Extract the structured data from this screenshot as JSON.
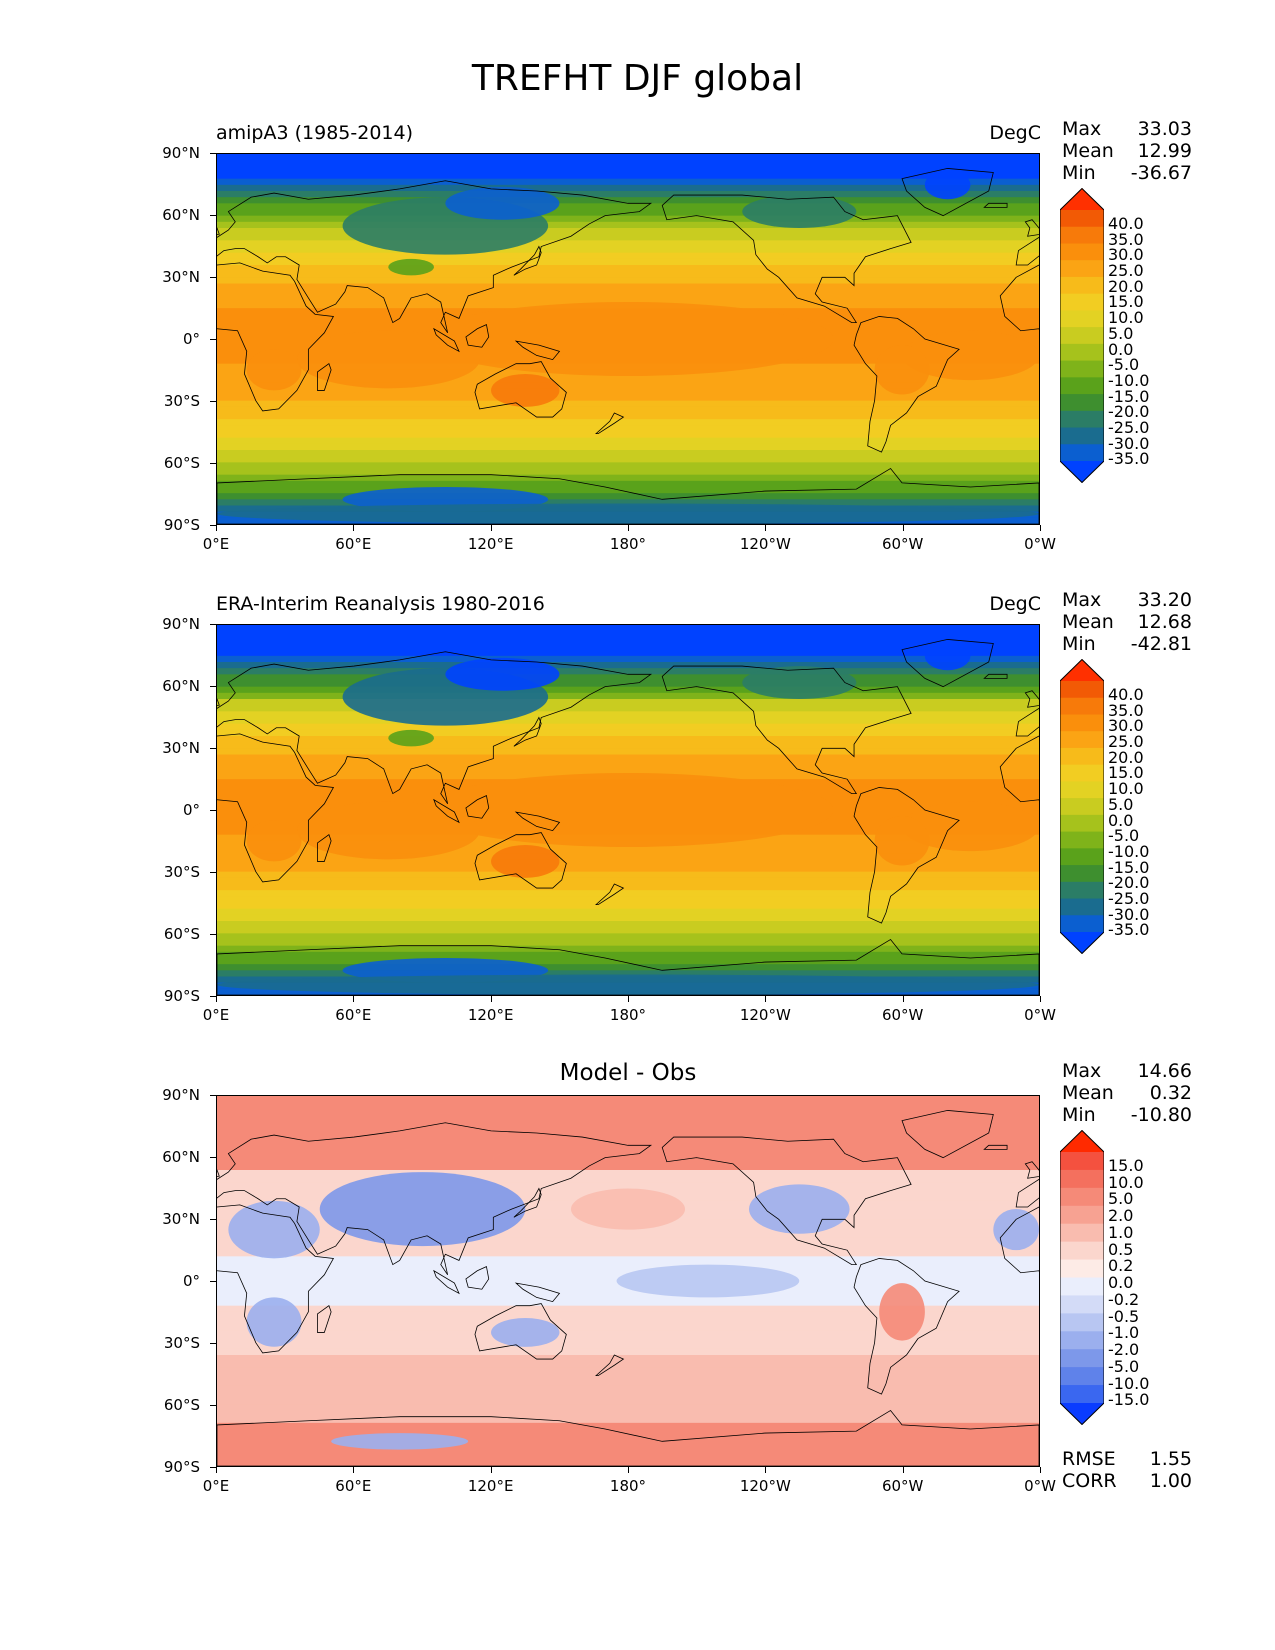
{
  "figure": {
    "title": "TREFHT DJF global"
  },
  "axes": {
    "lat_labels": [
      "90°N",
      "60°N",
      "30°N",
      "0°",
      "30°S",
      "60°S",
      "90°S"
    ],
    "lon_labels": [
      "0°E",
      "60°E",
      "120°E",
      "180°",
      "120°W",
      "60°W",
      "0°W"
    ]
  },
  "panels": [
    {
      "left_title": "amipA3 (1985-2014)",
      "right_title": "DegC",
      "center_title": "",
      "stats": [
        {
          "label": "Max",
          "value": "33.03"
        },
        {
          "label": "Mean",
          "value": "12.99"
        },
        {
          "label": "Min",
          "value": "-36.67"
        }
      ],
      "colorbar_labels": [
        "40.0",
        "35.0",
        "30.0",
        "25.0",
        "20.0",
        "15.0",
        "10.0",
        "5.0",
        "0.0",
        "-5.0",
        "-10.0",
        "-15.0",
        "-20.0",
        "-25.0",
        "-30.0",
        "-35.0"
      ],
      "colorbar_colors": [
        "#ff3000",
        "#f25a05",
        "#f77a0a",
        "#fa8f0c",
        "#fba414",
        "#f7bb1a",
        "#f2cd22",
        "#e3d223",
        "#c9cc20",
        "#a6c21c",
        "#7fb31a",
        "#5aa21b",
        "#3e8f2f",
        "#2b7d66",
        "#1a6c8f",
        "#0b5fd0",
        "#0042ff"
      ],
      "extremes": {
        "max": 33.03,
        "mean": 12.99,
        "min": -36.67
      }
    },
    {
      "left_title": "ERA-Interim Reanalysis 1980-2016",
      "right_title": "DegC",
      "center_title": "",
      "stats": [
        {
          "label": "Max",
          "value": "33.20"
        },
        {
          "label": "Mean",
          "value": "12.68"
        },
        {
          "label": "Min",
          "value": "-42.81"
        }
      ],
      "colorbar_labels": [
        "40.0",
        "35.0",
        "30.0",
        "25.0",
        "20.0",
        "15.0",
        "10.0",
        "5.0",
        "0.0",
        "-5.0",
        "-10.0",
        "-15.0",
        "-20.0",
        "-25.0",
        "-30.0",
        "-35.0"
      ],
      "colorbar_colors": [
        "#ff3000",
        "#f25a05",
        "#f77a0a",
        "#fa8f0c",
        "#fba414",
        "#f7bb1a",
        "#f2cd22",
        "#e3d223",
        "#c9cc20",
        "#a6c21c",
        "#7fb31a",
        "#5aa21b",
        "#3e8f2f",
        "#2b7d66",
        "#1a6c8f",
        "#0b5fd0",
        "#0042ff"
      ],
      "extremes": {
        "max": 33.2,
        "mean": 12.68,
        "min": -42.81
      }
    },
    {
      "left_title": "",
      "right_title": "",
      "center_title": "Model - Obs",
      "stats": [
        {
          "label": "Max",
          "value": "14.66"
        },
        {
          "label": "Mean",
          "value": "0.32"
        },
        {
          "label": "Min",
          "value": "-10.80"
        }
      ],
      "bottom_stats": [
        {
          "label": "RMSE",
          "value": "1.55"
        },
        {
          "label": "CORR",
          "value": "1.00"
        }
      ],
      "colorbar_labels": [
        "15.0",
        "10.0",
        "5.0",
        "2.0",
        "1.0",
        "0.5",
        "0.2",
        "0.0",
        "-0.2",
        "-0.5",
        "-1.0",
        "-2.0",
        "-5.0",
        "-10.0",
        "-15.0"
      ],
      "colorbar_colors": [
        "#ff2a00",
        "#f4513f",
        "#f4705e",
        "#f58a78",
        "#f7a292",
        "#f9bcaf",
        "#fbd6cd",
        "#fdebe6",
        "#eaeefc",
        "#d3dbf7",
        "#b8c6f2",
        "#9bafee",
        "#7d98ea",
        "#5f82ea",
        "#3a67f0",
        "#0a3cff"
      ],
      "extremes": {
        "max": 14.66,
        "mean": 0.32,
        "min": -10.8
      }
    }
  ],
  "chart_data": [
    {
      "type": "heatmap",
      "title": "TREFHT DJF global",
      "subtitle": "amipA3 (1985-2014)",
      "units": "DegC",
      "x_ticks": [
        "0°E",
        "60°E",
        "120°E",
        "180°",
        "120°W",
        "60°W",
        "0°W"
      ],
      "y_ticks": [
        "90°N",
        "60°N",
        "30°N",
        "0°",
        "30°S",
        "60°S",
        "90°S"
      ],
      "xlim": [
        0,
        360
      ],
      "ylim": [
        -90,
        90
      ],
      "levels": [
        -35,
        -30,
        -25,
        -20,
        -15,
        -10,
        -5,
        0,
        5,
        10,
        15,
        20,
        25,
        30,
        35,
        40
      ],
      "max": 33.03,
      "mean": 12.99,
      "min": -36.67
    },
    {
      "type": "heatmap",
      "subtitle": "ERA-Interim Reanalysis 1980-2016",
      "units": "DegC",
      "x_ticks": [
        "0°E",
        "60°E",
        "120°E",
        "180°",
        "120°W",
        "60°W",
        "0°W"
      ],
      "y_ticks": [
        "90°N",
        "60°N",
        "30°N",
        "0°",
        "30°S",
        "60°S",
        "90°S"
      ],
      "xlim": [
        0,
        360
      ],
      "ylim": [
        -90,
        90
      ],
      "levels": [
        -35,
        -30,
        -25,
        -20,
        -15,
        -10,
        -5,
        0,
        5,
        10,
        15,
        20,
        25,
        30,
        35,
        40
      ],
      "max": 33.2,
      "mean": 12.68,
      "min": -42.81
    },
    {
      "type": "heatmap",
      "subtitle": "Model - Obs",
      "x_ticks": [
        "0°E",
        "60°E",
        "120°E",
        "180°",
        "120°W",
        "60°W",
        "0°W"
      ],
      "y_ticks": [
        "90°N",
        "60°N",
        "30°N",
        "0°",
        "30°S",
        "60°S",
        "90°S"
      ],
      "xlim": [
        0,
        360
      ],
      "ylim": [
        -90,
        90
      ],
      "levels": [
        -15,
        -10,
        -5,
        -2,
        -1,
        -0.5,
        -0.2,
        0,
        0.2,
        0.5,
        1,
        2,
        5,
        10,
        15
      ],
      "max": 14.66,
      "mean": 0.32,
      "min": -10.8,
      "rmse": 1.55,
      "corr": 1.0
    }
  ]
}
